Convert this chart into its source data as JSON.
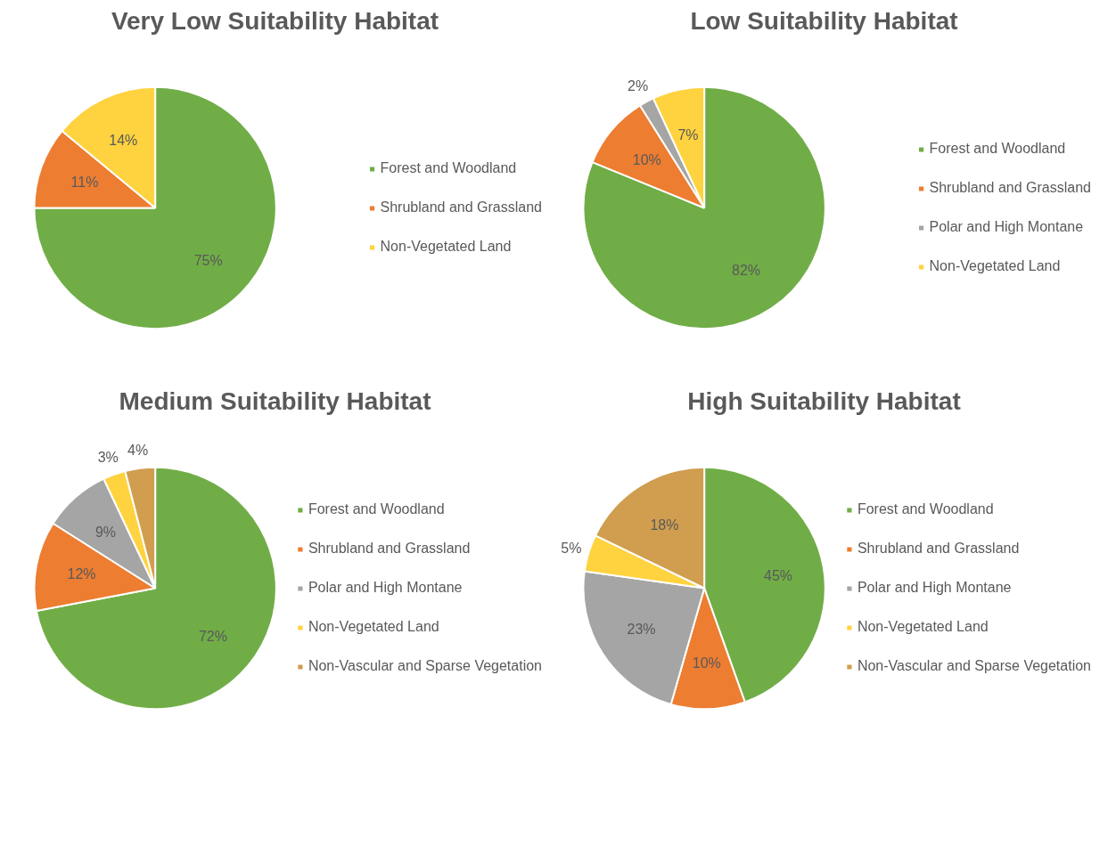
{
  "chart_data": [
    {
      "type": "pie",
      "title": "Very Low Suitability Habitat",
      "categories": [
        "Forest and Woodland",
        "Shrubland and Grassland",
        "Non-Vegetated Land"
      ],
      "values": [
        75,
        11,
        14
      ],
      "value_labels": [
        "75%",
        "11%",
        "14%"
      ],
      "colors": [
        "#70ad47",
        "#ed7d31",
        "#ffd23f"
      ],
      "legend": "right"
    },
    {
      "type": "pie",
      "title": "Low Suitability Habitat",
      "categories": [
        "Forest and Woodland",
        "Shrubland and Grassland",
        "Polar and High Montane",
        "Non-Vegetated Land"
      ],
      "values": [
        82,
        10,
        2,
        7
      ],
      "value_labels": [
        "82%",
        "10%",
        "2%",
        "7%"
      ],
      "colors": [
        "#70ad47",
        "#ed7d31",
        "#a5a5a5",
        "#ffd23f"
      ],
      "legend": "right"
    },
    {
      "type": "pie",
      "title": "Medium Suitability Habitat",
      "categories": [
        "Forest and Woodland",
        "Shrubland and Grassland",
        "Polar and High Montane",
        "Non-Vegetated Land",
        "Non-Vascular and Sparse Vegetation"
      ],
      "values": [
        72,
        12,
        9,
        3,
        4
      ],
      "value_labels": [
        "72%",
        "12%",
        "9%",
        "3%",
        "4%"
      ],
      "colors": [
        "#70ad47",
        "#ed7d31",
        "#a5a5a5",
        "#ffd23f",
        "#d09e4e"
      ],
      "legend": "right"
    },
    {
      "type": "pie",
      "title": "High Suitability Habitat",
      "categories": [
        "Forest and Woodland",
        "Shrubland and Grassland",
        "Polar and High Montane",
        "Non-Vegetated Land",
        "Non-Vascular and Sparse Vegetation"
      ],
      "values": [
        45,
        10,
        23,
        5,
        18
      ],
      "value_labels": [
        "45%",
        "10%",
        "23%",
        "5%",
        "18%"
      ],
      "colors": [
        "#70ad47",
        "#ed7d31",
        "#a5a5a5",
        "#ffd23f",
        "#d09e4e"
      ],
      "legend": "right"
    }
  ]
}
